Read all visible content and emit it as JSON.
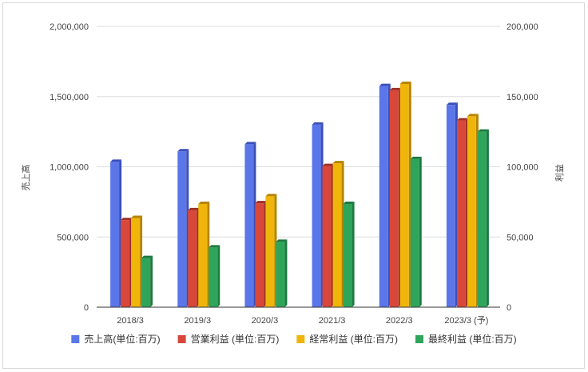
{
  "chart_data": {
    "type": "bar",
    "categories": [
      "2018/3",
      "2019/3",
      "2020/3",
      "2021/3",
      "2022/3",
      "2023/3 (予)"
    ],
    "left_axis": {
      "label": "売上高",
      "range": [
        0,
        2000000
      ],
      "ticks": [
        0,
        500000,
        1000000,
        1500000,
        2000000
      ],
      "tick_labels": [
        "0",
        "500,000",
        "1,000,000",
        "1,500,000",
        "2,000,000"
      ]
    },
    "right_axis": {
      "label": "利益",
      "range": [
        0,
        200000
      ],
      "ticks": [
        0,
        50000,
        100000,
        150000,
        200000
      ],
      "tick_labels": [
        "0",
        "50,000",
        "100,000",
        "150,000",
        "200,000"
      ]
    },
    "grid": true,
    "legend_position": "bottom",
    "series": [
      {
        "name": "売上高(単位:百万)",
        "axis": "left",
        "color": "#5b76e8",
        "side_color": "#3a4fb8",
        "values": [
          1035000,
          1110000,
          1160000,
          1300000,
          1575000,
          1440000
        ]
      },
      {
        "name": "営業利益 (単位:百万)",
        "axis": "right",
        "color": "#d7483b",
        "side_color": "#9d2e24",
        "values": [
          62000,
          69000,
          74000,
          100500,
          154500,
          133000
        ]
      },
      {
        "name": "経常利益 (単位:百万)",
        "axis": "right",
        "color": "#f0b50a",
        "side_color": "#b58400",
        "values": [
          63500,
          73500,
          79000,
          102500,
          159000,
          136000
        ]
      },
      {
        "name": "最終利益 (単位:百万)",
        "axis": "right",
        "color": "#2fa55b",
        "side_color": "#1d7a40",
        "values": [
          35000,
          42500,
          46500,
          73500,
          105500,
          125000
        ]
      }
    ]
  }
}
